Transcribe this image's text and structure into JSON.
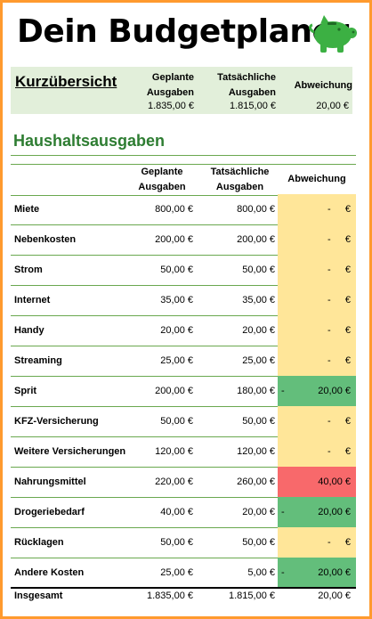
{
  "colors": {
    "border": "#ff9a2e",
    "summary_bg": "#e2efda",
    "accent_green": "#2e7d32",
    "neutral": "#ffe699",
    "under_budget": "#63be7b",
    "over_budget": "#f8696b"
  },
  "header": {
    "title": "Dein Budgetplaner",
    "icon": "piggy-bank-icon"
  },
  "summary": {
    "title": "Kurzübersicht",
    "planned_label_1": "Geplante",
    "planned_label_2": "Ausgaben",
    "actual_label_1": "Tatsächliche",
    "actual_label_2": "Ausgaben",
    "deviation_label": "Abweichung",
    "planned_value": "1.835,00 €",
    "actual_value": "1.815,00 €",
    "deviation_value": "20,00 €"
  },
  "section": {
    "title": "Haushaltsausgaben"
  },
  "table": {
    "col_planned_1": "Geplante",
    "col_planned_2": "Ausgaben",
    "col_actual_1": "Tatsächliche",
    "col_actual_2": "Ausgaben",
    "col_deviation": "Abweichung",
    "rows": [
      {
        "name": "Miete",
        "planned": "800,00 €",
        "actual": "800,00 €",
        "status": "neutral",
        "dash": "-",
        "dev": "€"
      },
      {
        "name": "Nebenkosten",
        "planned": "200,00 €",
        "actual": "200,00 €",
        "status": "neutral",
        "dash": "-",
        "dev": "€"
      },
      {
        "name": "Strom",
        "planned": "50,00 €",
        "actual": "50,00 €",
        "status": "neutral",
        "dash": "-",
        "dev": "€"
      },
      {
        "name": "Internet",
        "planned": "35,00 €",
        "actual": "35,00 €",
        "status": "neutral",
        "dash": "-",
        "dev": "€"
      },
      {
        "name": "Handy",
        "planned": "20,00 €",
        "actual": "20,00 €",
        "status": "neutral",
        "dash": "-",
        "dev": "€"
      },
      {
        "name": "Streaming",
        "planned": "25,00 €",
        "actual": "25,00 €",
        "status": "neutral",
        "dash": "-",
        "dev": "€"
      },
      {
        "name": "Sprit",
        "planned": "200,00 €",
        "actual": "180,00 €",
        "status": "under",
        "dash": "-",
        "dev": "20,00 €"
      },
      {
        "name": "KFZ-Versicherung",
        "planned": "50,00 €",
        "actual": "50,00 €",
        "status": "neutral",
        "dash": "-",
        "dev": "€"
      },
      {
        "name": "Weitere Versicherungen",
        "planned": "120,00 €",
        "actual": "120,00 €",
        "status": "neutral",
        "dash": "-",
        "dev": "€"
      },
      {
        "name": "Nahrungsmittel",
        "planned": "220,00 €",
        "actual": "260,00 €",
        "status": "over",
        "dash": "",
        "dev": "40,00 €"
      },
      {
        "name": "Drogeriebedarf",
        "planned": "40,00 €",
        "actual": "20,00 €",
        "status": "under",
        "dash": "-",
        "dev": "20,00 €"
      },
      {
        "name": "Rücklagen",
        "planned": "50,00 €",
        "actual": "50,00 €",
        "status": "neutral",
        "dash": "-",
        "dev": "€"
      },
      {
        "name": "Andere Kosten",
        "planned": "25,00 €",
        "actual": "5,00 €",
        "status": "under",
        "dash": "-",
        "dev": "20,00 €"
      }
    ],
    "total": {
      "name": "Insgesamt",
      "planned": "1.835,00 €",
      "actual": "1.815,00 €",
      "dev": "20,00 €"
    }
  }
}
